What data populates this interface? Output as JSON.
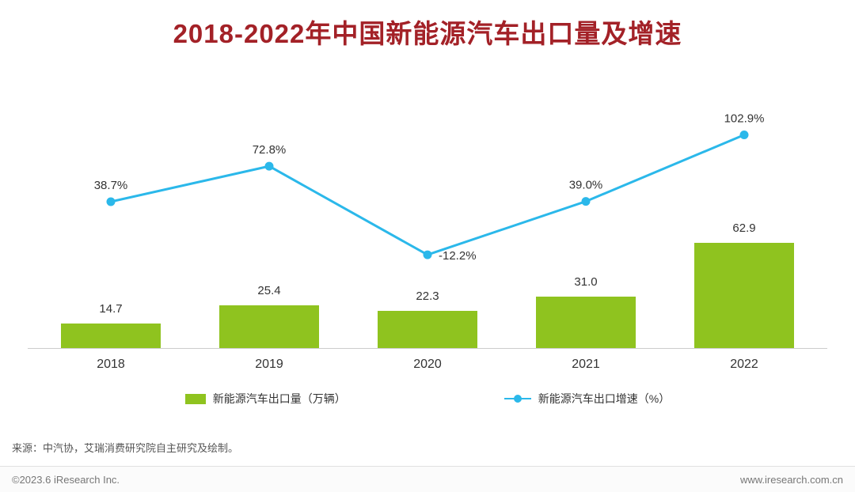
{
  "title": "2018-2022年中国新能源汽车出口量及增速",
  "chart_data": {
    "type": "bar+line",
    "title": "2018-2022年中国新能源汽车出口量及增速",
    "categories": [
      "2018",
      "2019",
      "2020",
      "2021",
      "2022"
    ],
    "series": [
      {
        "name": "新能源汽车出口量（万辆）",
        "type": "bar",
        "values": [
          14.7,
          25.4,
          22.3,
          31.0,
          62.9
        ],
        "labels": [
          "14.7",
          "25.4",
          "22.3",
          "31.0",
          "62.9"
        ]
      },
      {
        "name": "新能源汽车出口增速（%）",
        "type": "line",
        "values": [
          38.7,
          72.8,
          -12.2,
          39.0,
          102.9
        ],
        "labels": [
          "38.7%",
          "72.8%",
          "-12.2%",
          "39.0%",
          "102.9%"
        ]
      }
    ],
    "xlabel": "",
    "ylabel": "",
    "grid": false,
    "legend_position": "bottom"
  },
  "legend": {
    "bar_label": "新能源汽车出口量（万辆）",
    "line_label": "新能源汽车出口增速（%）"
  },
  "source": "来源：中汽协，艾瑞消费研究院自主研究及绘制。",
  "footer": {
    "left": "©2023.6 iResearch Inc.",
    "right": "www.iresearch.com.cn"
  },
  "colors": {
    "title": "#A32127",
    "bar": "#8FC31F",
    "line": "#2BB8EA",
    "label_text": "#333333"
  }
}
